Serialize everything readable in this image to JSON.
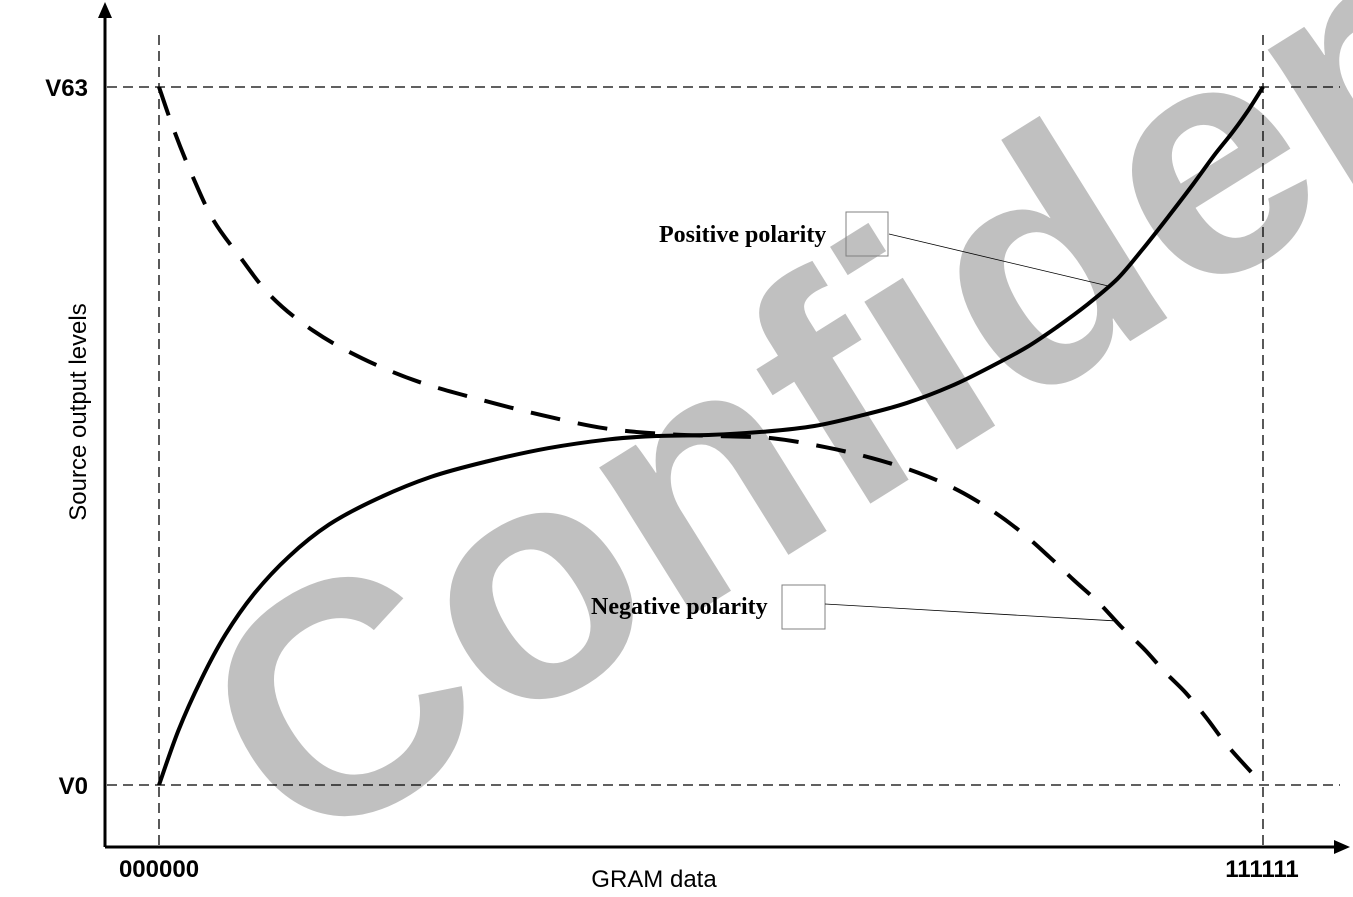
{
  "watermark": {
    "text": "Confidential",
    "color": "#c0c0c0"
  },
  "chart_data": {
    "type": "line",
    "xlabel": "GRAM data",
    "ylabel": "Source output levels",
    "x_ticks": [
      "000000",
      "111111"
    ],
    "y_ticks": [
      "V0",
      "V63"
    ],
    "xlim": [
      0,
      63
    ],
    "ylim": [
      0,
      63
    ],
    "grid": false,
    "legend": "none",
    "series": [
      {
        "name": "Positive polarity",
        "style": "solid",
        "color": "#000000",
        "x": [
          0,
          1.1,
          2.4,
          3.8,
          5.4,
          7.4,
          9.7,
          12.4,
          15.5,
          18.7,
          22.2,
          25.7,
          28.4,
          31.5,
          34.6,
          37.4,
          40.2,
          42.7,
          45.2,
          47.4,
          49.5,
          51.3,
          53.0,
          54.7,
          56.1,
          57.6,
          59.0,
          60.2,
          61.3,
          62.2,
          63
        ],
        "y": [
          0,
          4.9,
          9.5,
          13.6,
          17.2,
          20.6,
          23.5,
          25.8,
          27.8,
          29.2,
          30.4,
          31.2,
          31.5,
          31.6,
          31.9,
          32.4,
          33.4,
          34.5,
          36.0,
          37.7,
          39.5,
          41.4,
          43.4,
          45.7,
          48.3,
          51.3,
          54.2,
          56.8,
          59.0,
          61.0,
          63
        ]
      },
      {
        "name": "Negative polarity",
        "style": "dashed",
        "color": "#000000",
        "x": [
          0,
          0.9,
          1.9,
          3.1,
          4.6,
          6.4,
          8.8,
          11.6,
          14.8,
          18.3,
          21.8,
          25.4,
          28.7,
          31.8,
          35.0,
          38.0,
          40.7,
          43.3,
          45.6,
          47.6,
          49.3,
          50.8,
          52.2,
          53.6,
          54.9,
          56.2,
          57.4,
          58.6,
          59.8,
          61.0,
          63
        ],
        "y": [
          63,
          58.9,
          55.0,
          51.0,
          47.7,
          44.1,
          41.0,
          38.5,
          36.4,
          34.8,
          33.4,
          32.2,
          31.7,
          31.5,
          31.3,
          30.5,
          29.5,
          28.2,
          26.6,
          24.7,
          22.7,
          20.6,
          18.5,
          16.5,
          14.3,
          12.3,
          10.2,
          8.3,
          6.0,
          3.5,
          0
        ]
      }
    ],
    "annotations": [
      {
        "text": "Positive polarity",
        "series": "Positive polarity",
        "at_x": 54.2
      },
      {
        "text": "Negative polarity",
        "series": "Negative polarity",
        "at_x": 54.6
      }
    ]
  }
}
